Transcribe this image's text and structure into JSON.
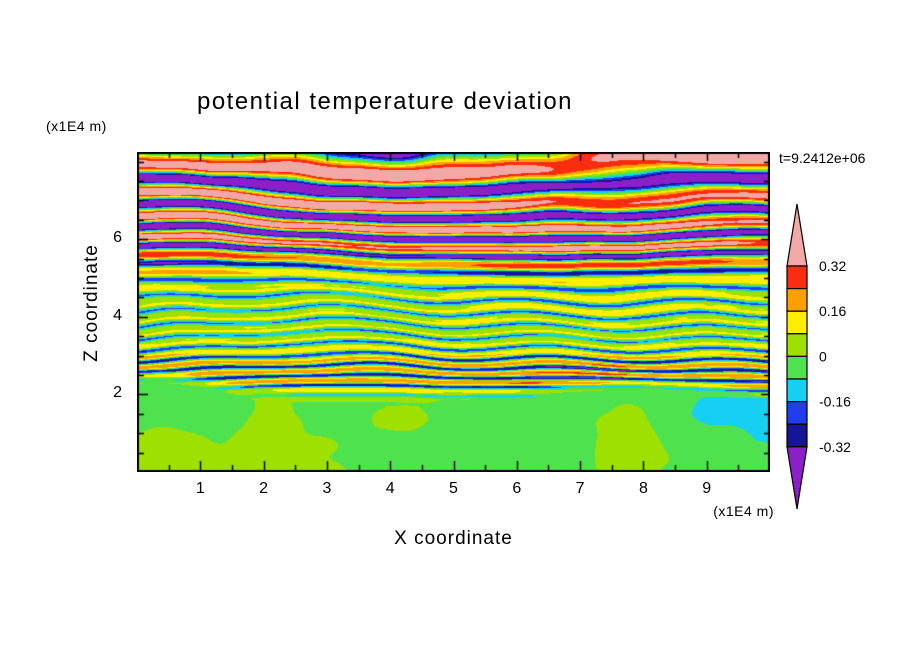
{
  "chart_data": {
    "type": "heatmap",
    "title": "potential temperature deviation",
    "time_annotation": "t=9.2412e+06",
    "x_axis": {
      "label": "X coordinate",
      "unit": "(x1E4 m)",
      "range": [
        0,
        10
      ],
      "major_ticks": [
        1,
        2,
        3,
        4,
        5,
        6,
        7,
        8,
        9
      ],
      "tick_labels": [
        "1",
        "2",
        "3",
        "4",
        "5",
        "6",
        "7",
        "8",
        "9"
      ],
      "minor_tick_step": 0.5
    },
    "z_axis": {
      "label": "Z coordinate",
      "unit": "(x1E4 m)",
      "range": [
        0,
        8.25
      ],
      "major_ticks": [
        2,
        4,
        6
      ],
      "tick_labels": [
        "2",
        "4",
        "6"
      ],
      "minor_tick_step": 0.5
    },
    "colorbar": {
      "labels": [
        "0.32",
        "0.16",
        "0",
        "-0.16",
        "-0.32"
      ],
      "label_values": [
        0.32,
        0.16,
        0,
        -0.16,
        -0.32
      ],
      "over_arrow": "above 0.32",
      "under_arrow": "below -0.32"
    },
    "contour_levels": [
      -0.32,
      -0.24,
      -0.16,
      -0.08,
      0,
      0.08,
      0.16,
      0.24,
      0.32
    ],
    "palette_ascending": [
      "#8B1FC8",
      "#15159A",
      "#1F3FEE",
      "#17CFF2",
      "#4FE24F",
      "#9EE000",
      "#FFEE00",
      "#FFA000",
      "#FB2D10",
      "#F2A8A4"
    ],
    "field_description": "Horizontally layered gravity-wave pattern of potential temperature deviation: thick alternating pink (>0.32) and purple (<-0.32) bands aloft (z>5.5x1E4 m), progressively thinner multicolored stripes (yellow/orange/cyan/blue/green, roughly +/-0.2) between z=2 and z=5.5, and a nearly uniform weakly negative green layer (0 to -0.08) below z~2 with cyan patches toward the lower right.",
    "field_model": {
      "phase_z0": 2.0,
      "phase_a": 26.8,
      "phase_b": -1.8,
      "wobble_amp": 1.2,
      "wobble_kx": 0.55,
      "wobble_kz": 0.8,
      "phase_noise": 0.9,
      "phase_noise_sx": 0.35,
      "phase_noise_sz": 0.3,
      "chevron_amp": 1.6,
      "chevron_kx": 2.3,
      "amp_base": 0.14,
      "amp_top": 0.3,
      "amp_top_z0": 4.6,
      "amp_top_z1": 6.3,
      "amp_low_bump": 0.12,
      "amp_noise": 0.8,
      "harmonic_amp": 0.05,
      "grain_amp": 0.02,
      "boundary_z": 1.95,
      "boundary_wave": 0.2,
      "boundary_noise": 0.3,
      "bottom_mean": -0.03,
      "bottom_noise": 0.09,
      "bottom_right_shift": -0.05
    }
  }
}
